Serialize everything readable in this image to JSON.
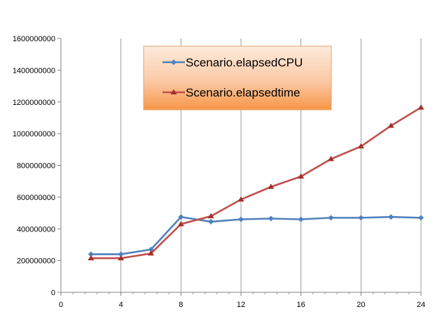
{
  "chart_data": {
    "type": "line",
    "title": "",
    "xlabel": "",
    "ylabel": "",
    "xlim": [
      0,
      24
    ],
    "ylim": [
      0,
      1600000000
    ],
    "x_ticks": [
      0,
      4,
      8,
      12,
      16,
      20,
      24
    ],
    "y_ticks": [
      0,
      200000000,
      400000000,
      600000000,
      800000000,
      1000000000,
      1200000000,
      1400000000,
      1600000000
    ],
    "x_tick_labels": [
      "0",
      "4",
      "8",
      "12",
      "16",
      "20",
      "24"
    ],
    "y_tick_labels": [
      "0",
      "200000000",
      "400000000",
      "600000000",
      "800000000",
      "1000000000",
      "1200000000",
      "1400000000",
      "1600000000"
    ],
    "grid": "vertical major gridlines only",
    "legend_position": "top-center",
    "x": [
      2,
      4,
      6,
      8,
      10,
      12,
      14,
      16,
      18,
      20,
      22,
      24
    ],
    "series": [
      {
        "name": "Scenario.elapsedCPU",
        "color": "#4F81BD",
        "marker": "diamond",
        "values": [
          240000000,
          240000000,
          270000000,
          475000000,
          445000000,
          460000000,
          465000000,
          460000000,
          470000000,
          470000000,
          475000000,
          470000000
        ]
      },
      {
        "name": "Scenario.elapsedtime",
        "color": "#C0504D",
        "marker": "triangle",
        "values": [
          215000000,
          215000000,
          245000000,
          430000000,
          480000000,
          585000000,
          665000000,
          730000000,
          840000000,
          920000000,
          1050000000,
          1165000000
        ]
      }
    ]
  }
}
